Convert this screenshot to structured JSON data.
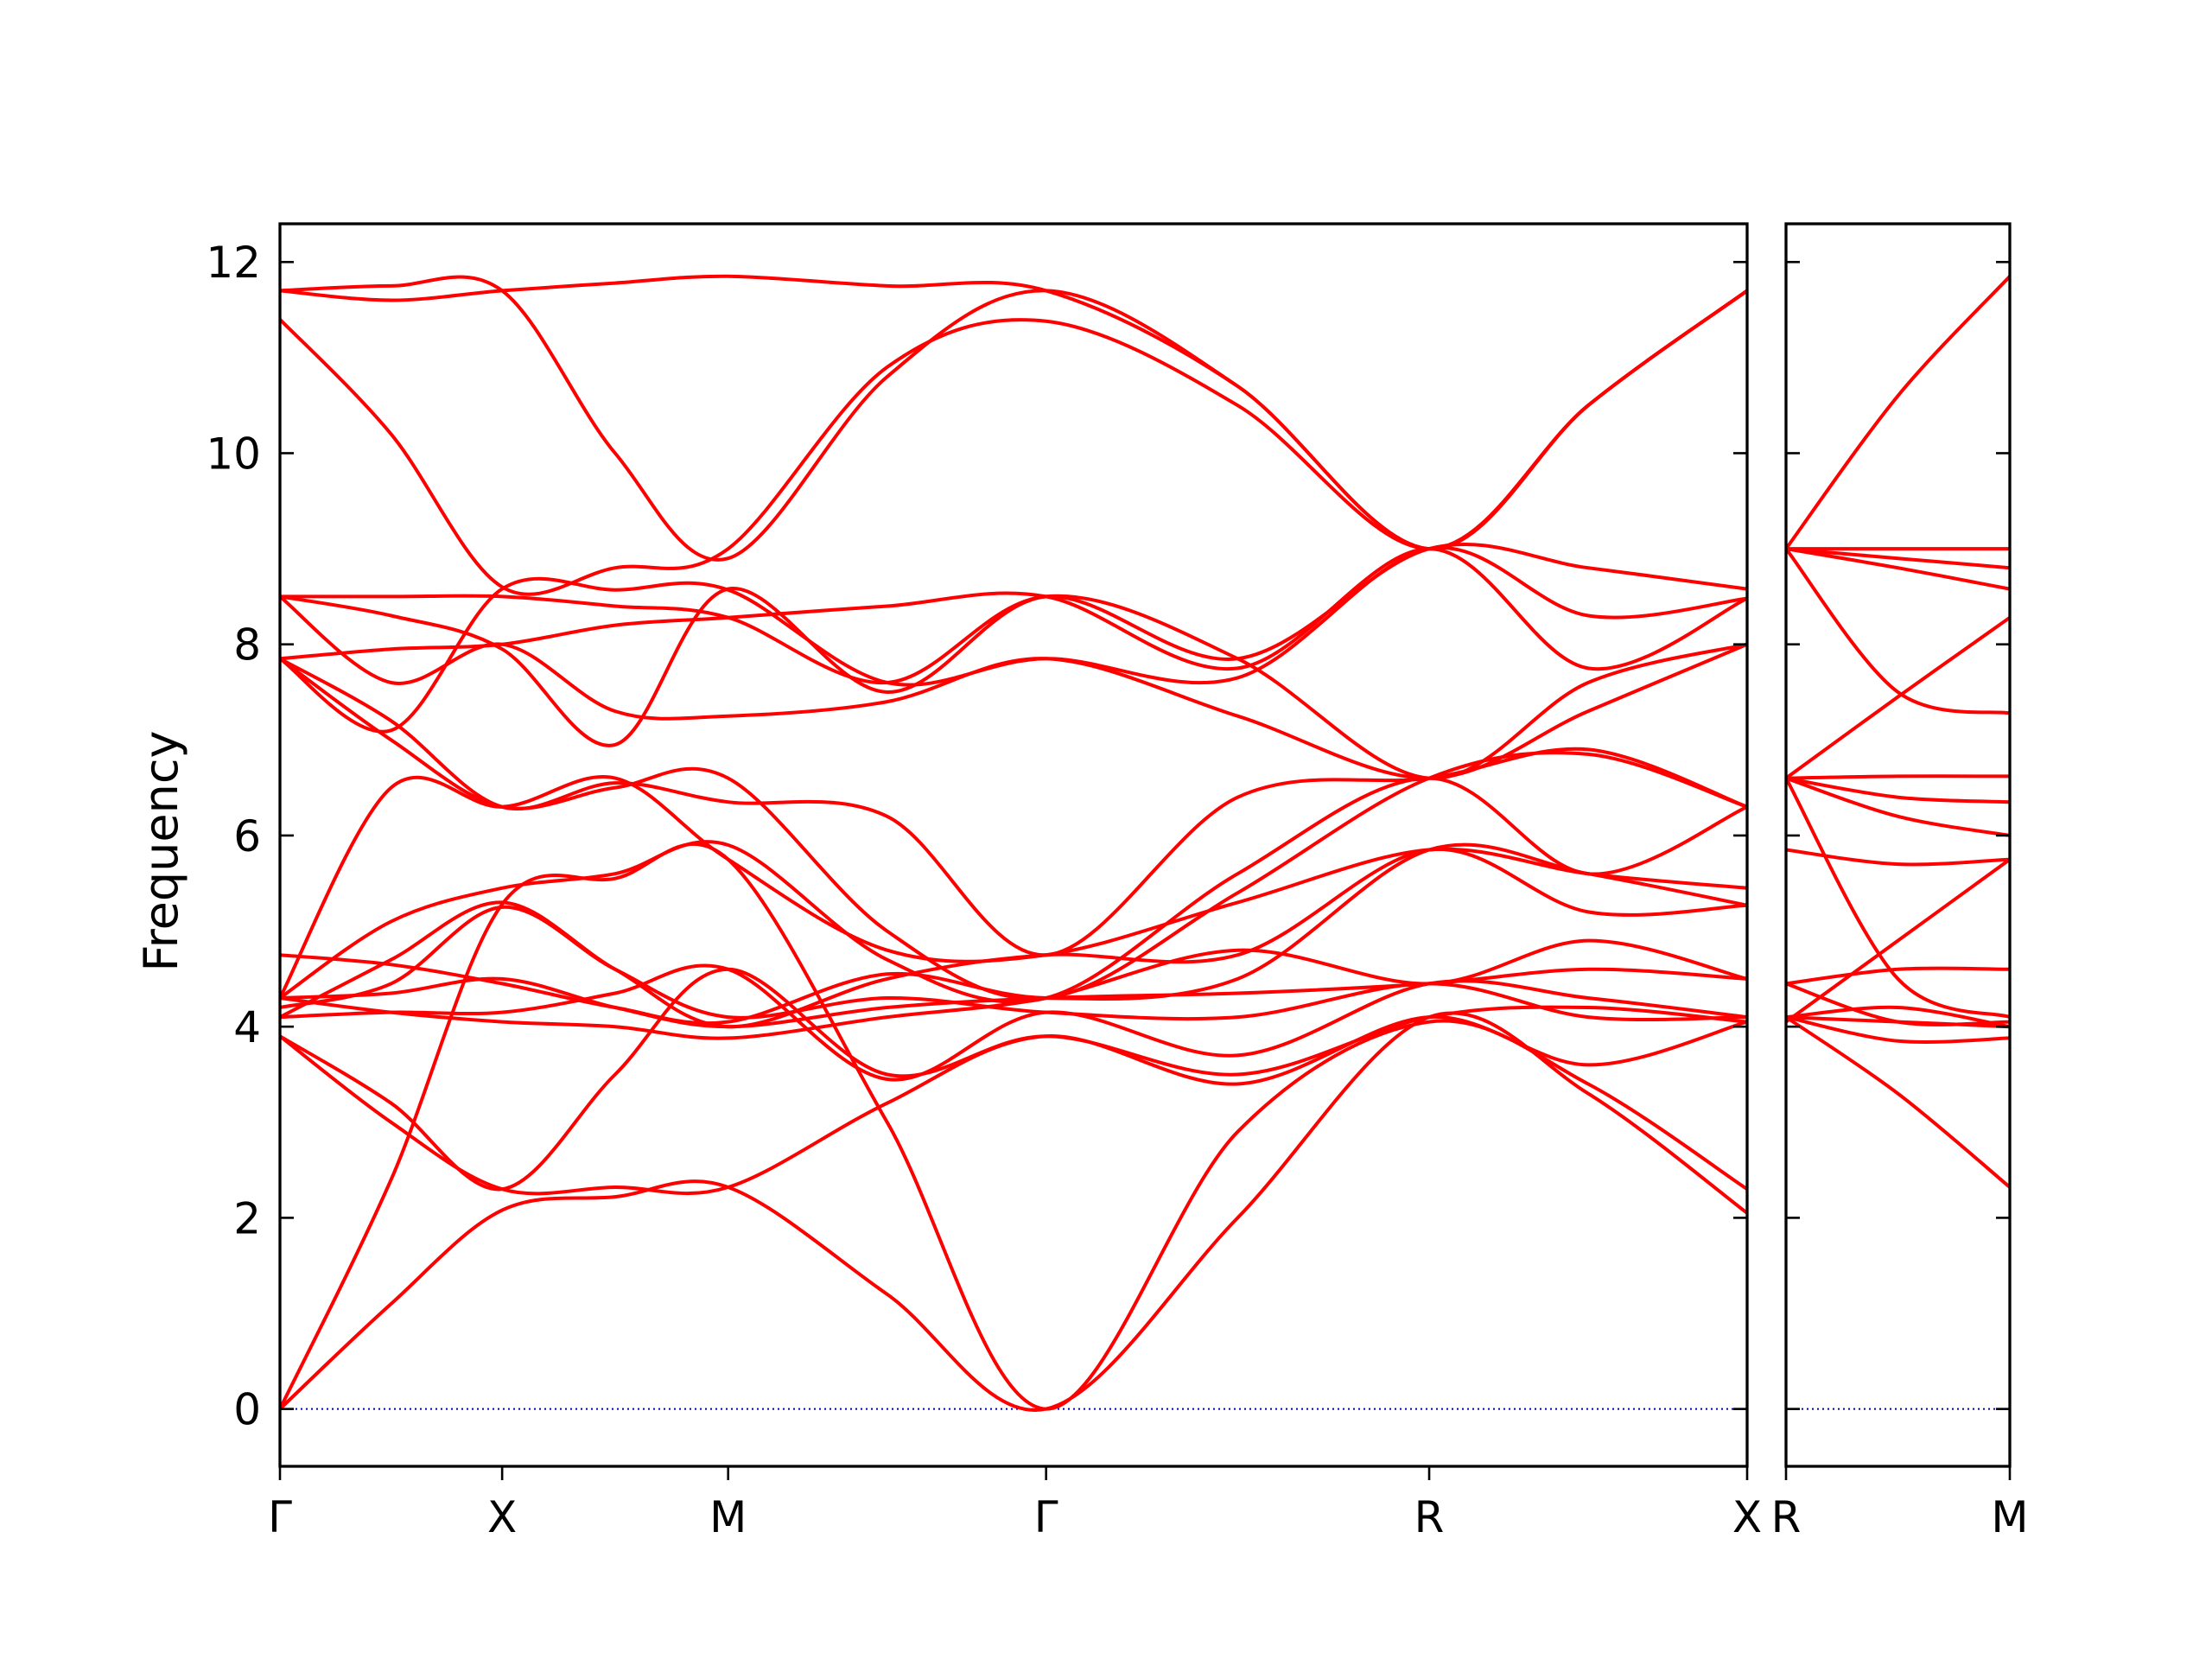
{
  "chart_data": {
    "type": "line",
    "ylabel": "Frequency",
    "ylim": [
      -0.6,
      12.4
    ],
    "yticks": [
      0,
      2,
      4,
      6,
      8,
      10,
      12
    ],
    "band_color": "#ff0000",
    "zero_line_color": "#0000aa",
    "panels": [
      {
        "xlim": [
          0,
          3.83
        ],
        "xticks": [
          {
            "pos": 0,
            "label": "Γ"
          },
          {
            "pos": 0.58,
            "label": "X"
          },
          {
            "pos": 1.17,
            "label": "M"
          },
          {
            "pos": 2.0,
            "label": "Γ"
          },
          {
            "pos": 3.0,
            "label": "R"
          },
          {
            "pos": 3.83,
            "label": "X"
          }
        ],
        "x": [
          0,
          0.29,
          0.58,
          0.875,
          1.17,
          1.585,
          2.0,
          2.5,
          3.0,
          3.415,
          3.83
        ],
        "series": [
          {
            "values": [
              0.0,
              1.1,
              2.08,
              2.22,
              2.32,
              1.2,
              0.0,
              2.0,
              4.1,
              3.3,
              2.05
            ]
          },
          {
            "values": [
              0.0,
              2.4,
              5.28,
              5.55,
              5.75,
              3.0,
              0.0,
              2.9,
              4.05,
              3.4,
              2.3
            ]
          },
          {
            "values": [
              3.9,
              3.0,
              2.3,
              2.32,
              2.32,
              3.2,
              3.9,
              3.4,
              4.1,
              3.6,
              4.05
            ]
          },
          {
            "values": [
              3.9,
              3.2,
              2.3,
              3.5,
              4.6,
              3.5,
              3.9,
              3.5,
              4.1,
              4.2,
              4.05
            ]
          },
          {
            "values": [
              4.1,
              4.15,
              4.15,
              4.35,
              4.6,
              3.45,
              4.15,
              3.7,
              4.45,
              4.3,
              4.1
            ]
          },
          {
            "values": [
              4.2,
              4.45,
              5.25,
              4.6,
              4.1,
              4.3,
              4.15,
              4.1,
              4.45,
              4.1,
              4.1
            ]
          },
          {
            "values": [
              4.3,
              4.35,
              4.5,
              4.2,
              4.0,
              4.2,
              4.3,
              4.35,
              4.45,
              4.6,
              4.5
            ]
          },
          {
            "values": [
              4.3,
              4.15,
              4.05,
              4.0,
              3.88,
              4.1,
              4.3,
              4.8,
              4.45,
              4.9,
              4.5
            ]
          },
          {
            "values": [
              4.75,
              4.65,
              4.45,
              4.2,
              4.05,
              4.55,
              4.3,
              4.5,
              5.85,
              5.6,
              5.27
            ]
          },
          {
            "values": [
              4.1,
              4.7,
              5.3,
              4.6,
              4.0,
              4.5,
              4.75,
              4.75,
              5.85,
              5.2,
              5.27
            ]
          },
          {
            "values": [
              4.3,
              6.5,
              6.3,
              6.6,
              5.75,
              4.8,
              4.75,
              5.3,
              5.85,
              5.6,
              5.45
            ]
          },
          {
            "values": [
              4.3,
              5.1,
              5.45,
              5.6,
              5.9,
              4.7,
              4.3,
              5.6,
              6.6,
              5.6,
              6.3
            ]
          },
          {
            "values": [
              7.85,
              7.0,
              6.3,
              6.5,
              6.6,
              5.0,
              4.3,
              5.4,
              6.6,
              6.85,
              6.3
            ]
          },
          {
            "values": [
              7.85,
              7.2,
              6.3,
              6.55,
              6.35,
              6.2,
              4.75,
              6.4,
              6.6,
              6.9,
              6.3
            ]
          },
          {
            "values": [
              8.5,
              7.6,
              8.0,
              7.3,
              7.25,
              7.4,
              7.85,
              7.25,
              6.6,
              7.3,
              8.0
            ]
          },
          {
            "values": [
              8.5,
              8.3,
              7.95,
              6.95,
              8.58,
              7.5,
              8.5,
              7.85,
              6.6,
              7.6,
              8.0
            ]
          },
          {
            "values": [
              7.85,
              7.95,
              8.0,
              8.2,
              8.28,
              8.4,
              8.5,
              7.75,
              9.0,
              7.75,
              8.48
            ]
          },
          {
            "values": [
              7.85,
              7.1,
              8.58,
              8.57,
              8.57,
              7.6,
              7.85,
              7.65,
              9.0,
              8.3,
              8.48
            ]
          },
          {
            "values": [
              8.5,
              8.5,
              8.5,
              8.4,
              8.28,
              7.6,
              8.5,
              7.85,
              9.0,
              8.8,
              8.58
            ]
          },
          {
            "values": [
              11.7,
              11.6,
              11.7,
              11.78,
              11.85,
              11.75,
              11.7,
              10.7,
              9.0,
              10.5,
              11.7
            ]
          },
          {
            "values": [
              11.7,
              11.75,
              11.7,
              10.0,
              8.9,
              10.8,
              11.7,
              10.7,
              9.0,
              10.5,
              11.7
            ]
          },
          {
            "values": [
              11.4,
              10.2,
              8.6,
              8.8,
              9.0,
              10.9,
              11.38,
              10.5,
              9.0,
              10.5,
              11.7
            ]
          }
        ]
      },
      {
        "xlim": [
          0,
          0.58
        ],
        "xticks": [
          {
            "pos": 0,
            "label": "R"
          },
          {
            "pos": 0.58,
            "label": "M"
          }
        ],
        "x": [
          0,
          0.29,
          0.58
        ],
        "series": [
          {
            "values": [
              4.1,
              3.3,
              2.32
            ]
          },
          {
            "values": [
              4.1,
              3.85,
              3.88
            ]
          },
          {
            "values": [
              4.1,
              4.05,
              4.0
            ]
          },
          {
            "values": [
              4.1,
              4.2,
              4.0
            ]
          },
          {
            "values": [
              4.45,
              4.05,
              4.05
            ]
          },
          {
            "values": [
              4.45,
              4.6,
              4.6
            ]
          },
          {
            "values": [
              4.05,
              4.9,
              5.75
            ]
          },
          {
            "values": [
              5.85,
              5.7,
              5.75
            ]
          },
          {
            "values": [
              6.6,
              4.5,
              4.1
            ]
          },
          {
            "values": [
              6.6,
              6.2,
              6.0
            ]
          },
          {
            "values": [
              6.6,
              6.4,
              6.35
            ]
          },
          {
            "values": [
              6.6,
              6.62,
              6.62
            ]
          },
          {
            "values": [
              6.6,
              7.45,
              8.28
            ]
          },
          {
            "values": [
              9.0,
              7.5,
              7.28
            ]
          },
          {
            "values": [
              9.0,
              8.8,
              8.58
            ]
          },
          {
            "values": [
              9.0,
              8.9,
              8.8
            ]
          },
          {
            "values": [
              9.0,
              9.0,
              9.0
            ]
          },
          {
            "values": [
              9.0,
              10.6,
              11.85
            ]
          }
        ]
      }
    ]
  }
}
